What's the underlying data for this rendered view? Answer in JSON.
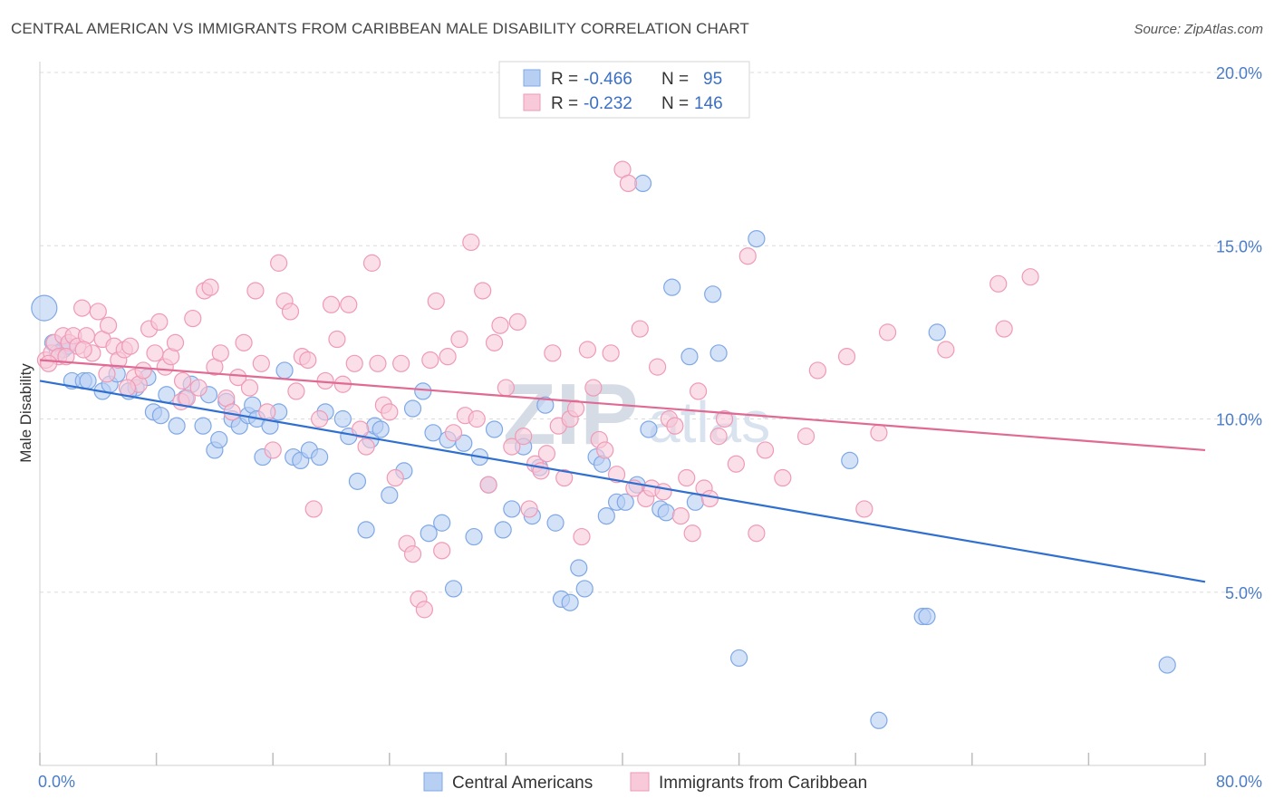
{
  "header": {
    "title": "CENTRAL AMERICAN VS IMMIGRANTS FROM CARIBBEAN MALE DISABILITY CORRELATION CHART",
    "source": "Source: ZipAtlas.com"
  },
  "watermark": {
    "zip": "ZIP",
    "atlas": "atlas"
  },
  "legend_top": {
    "rows": [
      {
        "r_label": "R =",
        "r_value": "-0.466",
        "n_label": "N =",
        "n_value": "95",
        "color": "#a9c4ee"
      },
      {
        "r_label": "R =",
        "r_value": "-0.232",
        "n_label": "N =",
        "n_value": "146",
        "color": "#f4b6c8"
      }
    ]
  },
  "chart_data": {
    "type": "scatter",
    "title": "CENTRAL AMERICAN VS IMMIGRANTS FROM CARIBBEAN MALE DISABILITY CORRELATION CHART",
    "xlabel": "",
    "ylabel": "Male Disability",
    "xlim": [
      0,
      80
    ],
    "ylim": [
      0,
      20
    ],
    "x_tick_labels": [
      "0.0%",
      "80.0%"
    ],
    "y_ticks": [
      5,
      10,
      15,
      20
    ],
    "y_tick_labels": [
      "5.0%",
      "10.0%",
      "15.0%",
      "20.0%"
    ],
    "grid": true,
    "legend_position": "bottom",
    "series": [
      {
        "name": "Central Americans",
        "color": "#7fa8e6",
        "fill": "#b7cff3",
        "line_color": "#2f6fd0",
        "trend": {
          "x": [
            0,
            80
          ],
          "y": [
            11.1,
            5.3
          ]
        },
        "big_point": {
          "x": 0.3,
          "y": 13.2
        },
        "points": [
          [
            0.9,
            12.2
          ],
          [
            1.6,
            12.0
          ],
          [
            1.9,
            12.1
          ],
          [
            2.2,
            11.1
          ],
          [
            3.0,
            11.1
          ],
          [
            3.3,
            11.1
          ],
          [
            4.3,
            10.8
          ],
          [
            4.8,
            11.0
          ],
          [
            5.3,
            11.3
          ],
          [
            6.6,
            10.9
          ],
          [
            6.1,
            10.8
          ],
          [
            7.4,
            11.2
          ],
          [
            7.8,
            10.2
          ],
          [
            8.3,
            10.1
          ],
          [
            8.7,
            10.7
          ],
          [
            9.4,
            9.8
          ],
          [
            10.0,
            10.6
          ],
          [
            10.4,
            11.0
          ],
          [
            11.2,
            9.8
          ],
          [
            11.6,
            10.7
          ],
          [
            12.0,
            9.1
          ],
          [
            12.3,
            9.4
          ],
          [
            12.8,
            10.5
          ],
          [
            13.2,
            10.0
          ],
          [
            13.7,
            9.8
          ],
          [
            14.3,
            10.1
          ],
          [
            14.6,
            10.4
          ],
          [
            14.9,
            10.0
          ],
          [
            15.3,
            8.9
          ],
          [
            15.8,
            9.8
          ],
          [
            16.4,
            10.2
          ],
          [
            16.8,
            11.4
          ],
          [
            17.4,
            8.9
          ],
          [
            17.9,
            8.8
          ],
          [
            18.5,
            9.1
          ],
          [
            19.2,
            8.9
          ],
          [
            19.6,
            10.2
          ],
          [
            20.8,
            10.0
          ],
          [
            21.2,
            9.5
          ],
          [
            21.8,
            8.2
          ],
          [
            22.7,
            9.4
          ],
          [
            22.4,
            6.8
          ],
          [
            23.0,
            9.8
          ],
          [
            23.4,
            9.7
          ],
          [
            24.0,
            7.8
          ],
          [
            25.0,
            8.5
          ],
          [
            25.6,
            10.3
          ],
          [
            26.3,
            10.8
          ],
          [
            26.7,
            6.7
          ],
          [
            27.0,
            9.6
          ],
          [
            27.6,
            7.0
          ],
          [
            28.0,
            9.4
          ],
          [
            28.4,
            5.1
          ],
          [
            29.1,
            9.3
          ],
          [
            29.8,
            6.6
          ],
          [
            30.2,
            8.9
          ],
          [
            30.8,
            8.1
          ],
          [
            31.2,
            9.7
          ],
          [
            31.8,
            6.8
          ],
          [
            32.4,
            7.4
          ],
          [
            33.2,
            9.2
          ],
          [
            33.8,
            7.2
          ],
          [
            34.3,
            8.6
          ],
          [
            34.7,
            10.4
          ],
          [
            35.4,
            7.0
          ],
          [
            35.8,
            4.8
          ],
          [
            36.4,
            4.7
          ],
          [
            37.0,
            5.7
          ],
          [
            37.4,
            5.1
          ],
          [
            38.2,
            8.9
          ],
          [
            38.6,
            8.7
          ],
          [
            38.9,
            7.2
          ],
          [
            39.6,
            7.6
          ],
          [
            40.2,
            7.6
          ],
          [
            41.0,
            8.1
          ],
          [
            41.4,
            16.8
          ],
          [
            41.8,
            9.7
          ],
          [
            42.6,
            7.4
          ],
          [
            43.0,
            7.3
          ],
          [
            43.4,
            13.8
          ],
          [
            44.6,
            11.8
          ],
          [
            45.0,
            7.6
          ],
          [
            46.6,
            11.9
          ],
          [
            46.2,
            13.6
          ],
          [
            48.0,
            3.1
          ],
          [
            49.2,
            15.2
          ],
          [
            55.6,
            8.8
          ],
          [
            57.6,
            1.3
          ],
          [
            60.6,
            4.3
          ],
          [
            60.9,
            4.3
          ],
          [
            61.6,
            12.5
          ],
          [
            77.4,
            2.9
          ],
          [
            1.2,
            11.9
          ]
        ]
      },
      {
        "name": "Immigrants from Caribbean",
        "color": "#ef9ab6",
        "fill": "#f8c9d8",
        "line_color": "#e06a93",
        "trend": {
          "x": [
            0,
            80
          ],
          "y": [
            11.7,
            9.1
          ]
        },
        "points": [
          [
            0.4,
            11.7
          ],
          [
            0.8,
            11.9
          ],
          [
            1.0,
            12.2
          ],
          [
            1.3,
            11.8
          ],
          [
            1.6,
            12.4
          ],
          [
            2.0,
            12.2
          ],
          [
            2.3,
            12.4
          ],
          [
            2.6,
            12.1
          ],
          [
            2.9,
            13.2
          ],
          [
            3.2,
            12.4
          ],
          [
            3.6,
            11.9
          ],
          [
            4.0,
            13.1
          ],
          [
            4.3,
            12.3
          ],
          [
            4.7,
            12.7
          ],
          [
            5.1,
            12.1
          ],
          [
            5.4,
            11.7
          ],
          [
            5.8,
            12.0
          ],
          [
            6.2,
            12.1
          ],
          [
            6.5,
            11.2
          ],
          [
            6.8,
            11.0
          ],
          [
            7.1,
            11.4
          ],
          [
            7.5,
            12.6
          ],
          [
            7.9,
            11.9
          ],
          [
            8.2,
            12.8
          ],
          [
            8.6,
            11.5
          ],
          [
            9.0,
            11.8
          ],
          [
            9.3,
            12.2
          ],
          [
            9.7,
            10.5
          ],
          [
            10.1,
            10.6
          ],
          [
            10.5,
            12.9
          ],
          [
            10.9,
            10.9
          ],
          [
            11.3,
            13.7
          ],
          [
            11.7,
            13.8
          ],
          [
            12.0,
            11.5
          ],
          [
            12.4,
            11.9
          ],
          [
            12.8,
            10.6
          ],
          [
            13.2,
            10.2
          ],
          [
            13.6,
            11.2
          ],
          [
            14.0,
            12.2
          ],
          [
            14.4,
            10.9
          ],
          [
            14.8,
            13.7
          ],
          [
            15.2,
            11.6
          ],
          [
            15.6,
            10.2
          ],
          [
            16.0,
            9.1
          ],
          [
            16.4,
            14.5
          ],
          [
            16.8,
            13.4
          ],
          [
            17.2,
            13.1
          ],
          [
            17.6,
            10.8
          ],
          [
            18.0,
            11.8
          ],
          [
            18.4,
            11.7
          ],
          [
            18.8,
            7.4
          ],
          [
            19.2,
            10.0
          ],
          [
            19.6,
            11.1
          ],
          [
            20.0,
            13.3
          ],
          [
            20.4,
            12.3
          ],
          [
            20.8,
            11.0
          ],
          [
            21.2,
            13.3
          ],
          [
            21.6,
            11.6
          ],
          [
            22.0,
            9.7
          ],
          [
            22.4,
            9.2
          ],
          [
            22.8,
            14.5
          ],
          [
            23.2,
            11.6
          ],
          [
            23.6,
            10.4
          ],
          [
            24.0,
            10.2
          ],
          [
            24.4,
            8.3
          ],
          [
            24.8,
            11.6
          ],
          [
            25.2,
            6.4
          ],
          [
            25.6,
            6.1
          ],
          [
            26.0,
            4.8
          ],
          [
            26.4,
            4.5
          ],
          [
            26.8,
            11.7
          ],
          [
            27.2,
            13.4
          ],
          [
            27.6,
            6.2
          ],
          [
            28.0,
            11.8
          ],
          [
            28.4,
            9.6
          ],
          [
            28.8,
            12.3
          ],
          [
            29.2,
            10.1
          ],
          [
            29.6,
            15.1
          ],
          [
            30.0,
            10.0
          ],
          [
            30.4,
            13.7
          ],
          [
            30.8,
            8.1
          ],
          [
            31.2,
            12.2
          ],
          [
            31.6,
            12.7
          ],
          [
            32.0,
            10.9
          ],
          [
            32.4,
            9.2
          ],
          [
            32.8,
            12.8
          ],
          [
            33.2,
            9.5
          ],
          [
            33.6,
            7.4
          ],
          [
            34.0,
            8.7
          ],
          [
            34.4,
            8.5
          ],
          [
            34.8,
            9.0
          ],
          [
            35.2,
            11.9
          ],
          [
            35.6,
            9.8
          ],
          [
            36.0,
            8.3
          ],
          [
            36.4,
            10.0
          ],
          [
            36.8,
            10.3
          ],
          [
            37.2,
            6.6
          ],
          [
            37.6,
            12.0
          ],
          [
            38.0,
            10.9
          ],
          [
            38.4,
            9.4
          ],
          [
            38.8,
            9.1
          ],
          [
            39.2,
            11.9
          ],
          [
            39.6,
            8.4
          ],
          [
            40.0,
            17.2
          ],
          [
            40.4,
            16.8
          ],
          [
            40.8,
            8.0
          ],
          [
            41.2,
            12.6
          ],
          [
            41.6,
            7.7
          ],
          [
            42.0,
            8.0
          ],
          [
            42.4,
            11.5
          ],
          [
            42.8,
            7.9
          ],
          [
            43.2,
            10.0
          ],
          [
            43.6,
            9.8
          ],
          [
            44.0,
            7.2
          ],
          [
            44.4,
            8.3
          ],
          [
            44.8,
            6.7
          ],
          [
            45.2,
            10.8
          ],
          [
            45.6,
            8.0
          ],
          [
            46.0,
            7.7
          ],
          [
            46.6,
            9.5
          ],
          [
            47.0,
            10.0
          ],
          [
            47.8,
            8.7
          ],
          [
            48.6,
            14.7
          ],
          [
            49.2,
            6.7
          ],
          [
            49.8,
            9.1
          ],
          [
            51.0,
            8.3
          ],
          [
            52.6,
            9.5
          ],
          [
            53.4,
            11.4
          ],
          [
            55.4,
            11.8
          ],
          [
            56.6,
            7.4
          ],
          [
            57.6,
            9.6
          ],
          [
            58.2,
            12.5
          ],
          [
            62.2,
            12.0
          ],
          [
            65.8,
            13.9
          ],
          [
            66.2,
            12.6
          ],
          [
            68.0,
            14.1
          ],
          [
            0.6,
            11.6
          ],
          [
            1.8,
            11.8
          ],
          [
            3.0,
            12.0
          ],
          [
            4.6,
            11.3
          ],
          [
            6.0,
            10.9
          ],
          [
            9.8,
            11.1
          ]
        ]
      }
    ]
  },
  "legend_bottom": {
    "items": [
      {
        "label": "Central Americans",
        "color": "#b7cff3"
      },
      {
        "label": "Immigrants from Caribbean",
        "color": "#f8c9d8"
      }
    ]
  }
}
